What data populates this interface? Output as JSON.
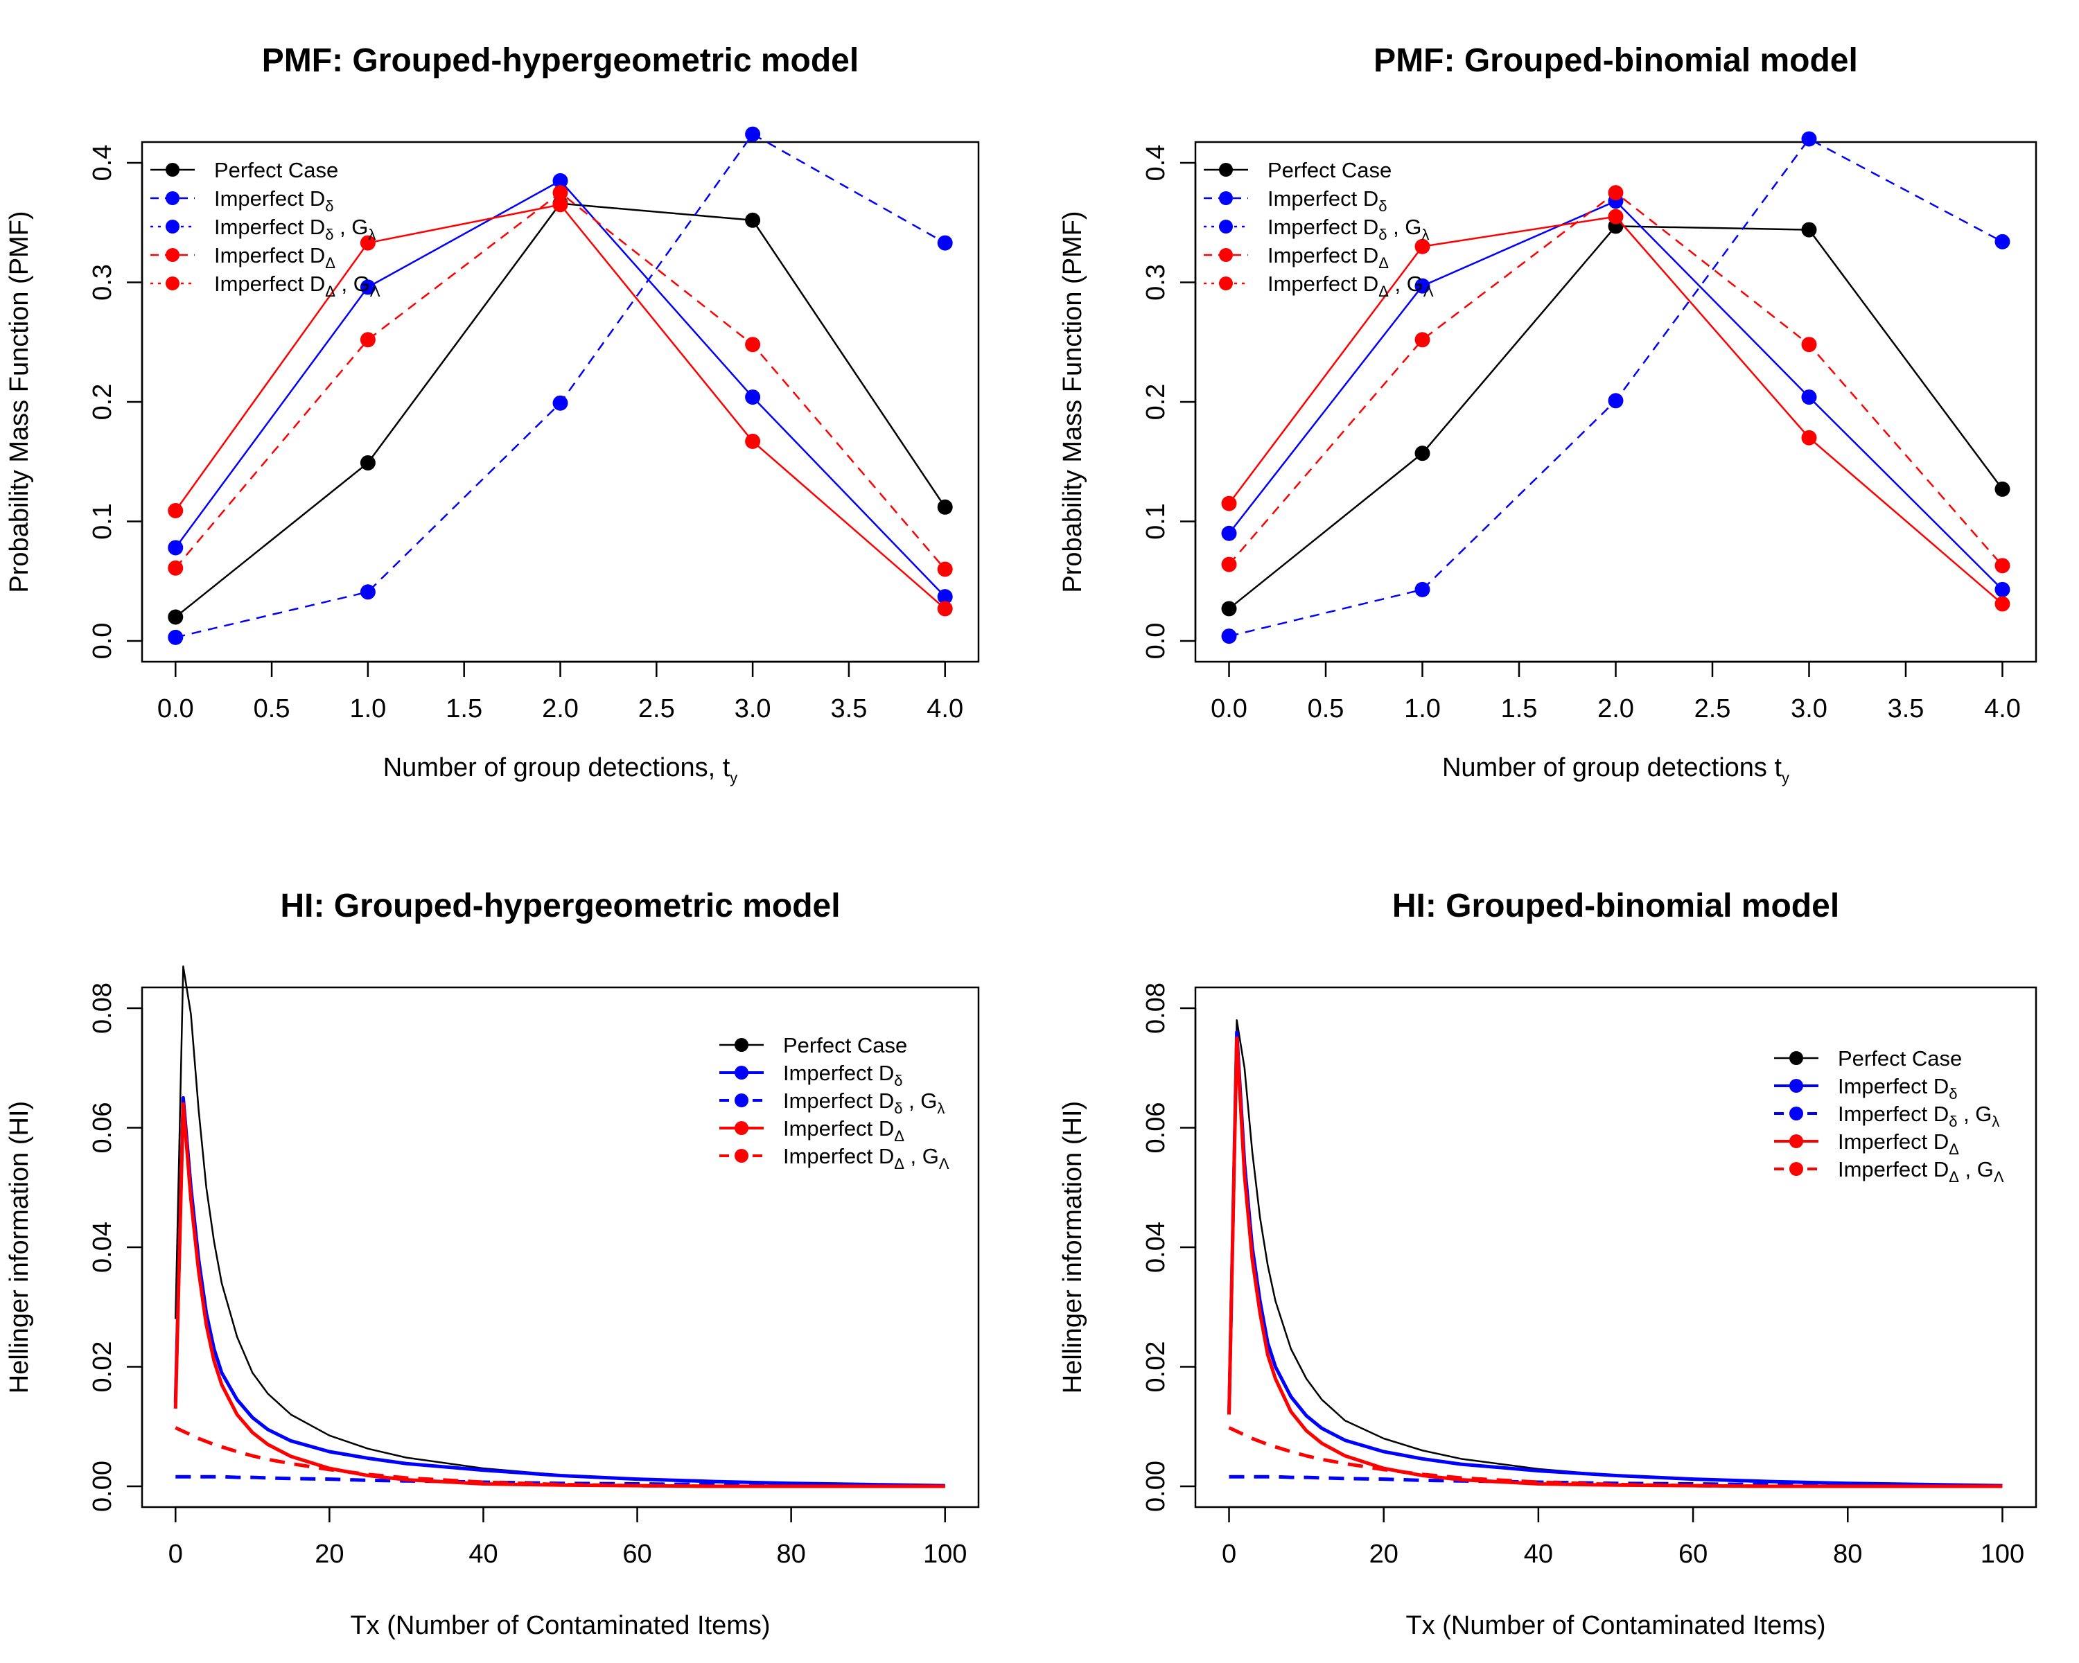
{
  "colors": {
    "perfect": "#000000",
    "delta": "#0000ff",
    "Delta": "#ff0000"
  },
  "chart_data": [
    {
      "type": "line",
      "title": "PMF: Grouped-hypergeometric model",
      "xlabel_main": "Number of group detections, t",
      "xlabel_sub": "y",
      "ylabel": "Probability Mass Function (PMF)",
      "xlim": [
        0,
        4
      ],
      "ylim": [
        0,
        0.4
      ],
      "x_ticks": [
        "0.0",
        "0.5",
        "1.0",
        "1.5",
        "2.0",
        "2.5",
        "3.0",
        "3.5",
        "4.0"
      ],
      "y_ticks": [
        "0.0",
        "0.1",
        "0.2",
        "0.3",
        "0.4"
      ],
      "grid": false,
      "legend_position": "top-left",
      "x": [
        0,
        1,
        2,
        3,
        4
      ],
      "series": [
        {
          "name_main": "Perfect Case",
          "name_sub": "",
          "name_tail": "",
          "name_sub2": "",
          "color": "#000000",
          "dash": "solid",
          "legend_dash": "solid",
          "values": [
            0.02,
            0.149,
            0.366,
            0.352,
            0.112
          ]
        },
        {
          "name_main": "Imperfect D",
          "name_sub": "δ",
          "name_tail": "",
          "name_sub2": "",
          "color": "#0000ff",
          "dash": "dashed",
          "legend_dash": "dashed",
          "values": [
            0.003,
            0.041,
            0.199,
            0.424,
            0.333
          ]
        },
        {
          "name_main": "Imperfect D",
          "name_sub": "δ",
          "name_tail": " , G",
          "name_sub2": "λ",
          "color": "#0000ff",
          "dash": "solid",
          "legend_dash": "dotted",
          "values": [
            0.078,
            0.296,
            0.385,
            0.204,
            0.037
          ]
        },
        {
          "name_main": "Imperfect D",
          "name_sub": "Δ",
          "name_tail": "",
          "name_sub2": "",
          "color": "#ff0000",
          "dash": "solid",
          "legend_dash": "dashed",
          "values": [
            0.109,
            0.333,
            0.365,
            0.167,
            0.027
          ]
        },
        {
          "name_main": "Imperfect D",
          "name_sub": "Δ",
          "name_tail": " , G",
          "name_sub2": "Λ",
          "color": "#ff0000",
          "dash": "dashed",
          "legend_dash": "dotted",
          "values": [
            0.061,
            0.252,
            0.375,
            0.248,
            0.06
          ]
        }
      ]
    },
    {
      "type": "line",
      "title": "PMF: Grouped-binomial model",
      "xlabel_main": "Number of group detections t",
      "xlabel_sub": "y",
      "ylabel": "Probability Mass Function (PMF)",
      "xlim": [
        0,
        4
      ],
      "ylim": [
        0,
        0.4
      ],
      "x_ticks": [
        "0.0",
        "0.5",
        "1.0",
        "1.5",
        "2.0",
        "2.5",
        "3.0",
        "3.5",
        "4.0"
      ],
      "y_ticks": [
        "0.0",
        "0.1",
        "0.2",
        "0.3",
        "0.4"
      ],
      "grid": false,
      "legend_position": "top-left",
      "x": [
        0,
        1,
        2,
        3,
        4
      ],
      "series": [
        {
          "name_main": "Perfect Case",
          "name_sub": "",
          "name_tail": "",
          "name_sub2": "",
          "color": "#000000",
          "dash": "solid",
          "legend_dash": "solid",
          "values": [
            0.027,
            0.157,
            0.347,
            0.344,
            0.127
          ]
        },
        {
          "name_main": "Imperfect D",
          "name_sub": "δ",
          "name_tail": "",
          "name_sub2": "",
          "color": "#0000ff",
          "dash": "dashed",
          "legend_dash": "dashed",
          "values": [
            0.004,
            0.043,
            0.201,
            0.42,
            0.334
          ]
        },
        {
          "name_main": "Imperfect D",
          "name_sub": "δ",
          "name_tail": " , G",
          "name_sub2": "λ",
          "color": "#0000ff",
          "dash": "solid",
          "legend_dash": "dotted",
          "values": [
            0.09,
            0.297,
            0.368,
            0.204,
            0.043
          ]
        },
        {
          "name_main": "Imperfect D",
          "name_sub": "Δ",
          "name_tail": "",
          "name_sub2": "",
          "color": "#ff0000",
          "dash": "solid",
          "legend_dash": "dashed",
          "values": [
            0.115,
            0.33,
            0.355,
            0.17,
            0.031
          ]
        },
        {
          "name_main": "Imperfect D",
          "name_sub": "Δ",
          "name_tail": " , G",
          "name_sub2": "Λ",
          "color": "#ff0000",
          "dash": "dashed",
          "legend_dash": "dotted",
          "values": [
            0.064,
            0.252,
            0.375,
            0.248,
            0.063
          ]
        }
      ]
    },
    {
      "type": "line",
      "title": "HI: Grouped-hypergeometric model",
      "xlabel_main": "Tx (Number of Contaminated Items)",
      "xlabel_sub": "",
      "ylabel": "Hellinger information (HI)",
      "xlim": [
        0,
        100
      ],
      "ylim": [
        0,
        0.08
      ],
      "x_ticks": [
        "0",
        "20",
        "40",
        "60",
        "80",
        "100"
      ],
      "y_ticks": [
        "0.00",
        "0.02",
        "0.04",
        "0.06",
        "0.08"
      ],
      "grid": false,
      "legend_position": "top-right",
      "x": [
        0,
        1,
        2,
        3,
        4,
        5,
        6,
        8,
        10,
        12,
        15,
        20,
        25,
        30,
        40,
        50,
        60,
        70,
        80,
        90,
        100
      ],
      "series": [
        {
          "name_main": "Perfect Case",
          "name_sub": "",
          "name_tail": "",
          "name_sub2": "",
          "color": "#000000",
          "dash": "solid",
          "width": "thin",
          "values": [
            0.028,
            0.087,
            0.079,
            0.063,
            0.05,
            0.041,
            0.034,
            0.025,
            0.019,
            0.0155,
            0.012,
            0.0085,
            0.0063,
            0.0048,
            0.003,
            0.0019,
            0.0012,
            0.0008,
            0.0005,
            0.0003,
            0.0001
          ]
        },
        {
          "name_main": "Imperfect D",
          "name_sub": "δ",
          "name_tail": "",
          "name_sub2": "",
          "color": "#0000ff",
          "dash": "solid",
          "width": "thick",
          "values": [
            0.014,
            0.065,
            0.05,
            0.038,
            0.029,
            0.023,
            0.019,
            0.0145,
            0.0115,
            0.0095,
            0.0076,
            0.0058,
            0.0047,
            0.0038,
            0.0027,
            0.0018,
            0.0012,
            0.0008,
            0.0005,
            0.0003,
            0.0001
          ]
        },
        {
          "name_main": "Imperfect D",
          "name_sub": "δ",
          "name_tail": " , G",
          "name_sub2": "λ",
          "color": "#0000ff",
          "dash": "dashed",
          "width": "thick",
          "values": [
            0.0016,
            0.0016,
            0.0016,
            0.0016,
            0.0016,
            0.0016,
            0.0016,
            0.0015,
            0.0015,
            0.0014,
            0.0013,
            0.0012,
            0.001,
            0.0009,
            0.0007,
            0.0005,
            0.0004,
            0.0003,
            0.0002,
            0.0001,
            0.0001
          ]
        },
        {
          "name_main": "Imperfect D",
          "name_sub": "Δ",
          "name_tail": "",
          "name_sub2": "",
          "color": "#ff0000",
          "dash": "solid",
          "width": "thick",
          "values": [
            0.013,
            0.064,
            0.048,
            0.036,
            0.027,
            0.021,
            0.017,
            0.012,
            0.009,
            0.007,
            0.005,
            0.003,
            0.0018,
            0.0011,
            0.0004,
            0.0002,
            0.0001,
            0.0,
            0.0,
            0.0,
            0.0
          ]
        },
        {
          "name_main": "Imperfect D",
          "name_sub": "Δ",
          "name_tail": " , G",
          "name_sub2": "Λ",
          "color": "#ff0000",
          "dash": "dashed",
          "width": "thick",
          "values": [
            0.0098,
            0.0092,
            0.0086,
            0.008,
            0.0075,
            0.007,
            0.0066,
            0.0058,
            0.0051,
            0.0045,
            0.0038,
            0.0028,
            0.002,
            0.0014,
            0.0007,
            0.0003,
            0.0001,
            0.0,
            0.0,
            0.0,
            0.0
          ]
        }
      ]
    },
    {
      "type": "line",
      "title": "HI: Grouped-binomial model",
      "xlabel_main": "Tx (Number of Contaminated Items)",
      "xlabel_sub": "",
      "ylabel": "Hellinger information (HI)",
      "xlim": [
        0,
        100
      ],
      "ylim": [
        0,
        0.08
      ],
      "x_ticks": [
        "0",
        "20",
        "40",
        "60",
        "80",
        "100"
      ],
      "y_ticks": [
        "0.00",
        "0.02",
        "0.04",
        "0.06",
        "0.08"
      ],
      "grid": false,
      "legend_position": "top-right",
      "x": [
        0,
        1,
        2,
        3,
        4,
        5,
        6,
        8,
        10,
        12,
        15,
        20,
        25,
        30,
        40,
        50,
        60,
        70,
        80,
        90,
        100
      ],
      "series": [
        {
          "name_main": "Perfect Case",
          "name_sub": "",
          "name_tail": "",
          "name_sub2": "",
          "color": "#000000",
          "dash": "solid",
          "width": "thin",
          "values": [
            0.018,
            0.078,
            0.07,
            0.056,
            0.045,
            0.037,
            0.031,
            0.023,
            0.018,
            0.0145,
            0.011,
            0.008,
            0.006,
            0.0046,
            0.0029,
            0.0018,
            0.0012,
            0.0008,
            0.0005,
            0.0003,
            0.0001
          ]
        },
        {
          "name_main": "Imperfect D",
          "name_sub": "δ",
          "name_tail": "",
          "name_sub2": "",
          "color": "#0000ff",
          "dash": "solid",
          "width": "thick",
          "values": [
            0.012,
            0.076,
            0.054,
            0.04,
            0.031,
            0.024,
            0.02,
            0.015,
            0.0118,
            0.0097,
            0.0077,
            0.0058,
            0.0046,
            0.0037,
            0.0026,
            0.0018,
            0.0012,
            0.0008,
            0.0005,
            0.0003,
            0.0001
          ]
        },
        {
          "name_main": "Imperfect D",
          "name_sub": "δ",
          "name_tail": " , G",
          "name_sub2": "λ",
          "color": "#0000ff",
          "dash": "dashed",
          "width": "thick",
          "values": [
            0.0016,
            0.0016,
            0.0016,
            0.0016,
            0.0016,
            0.0016,
            0.0016,
            0.0015,
            0.0015,
            0.0014,
            0.0013,
            0.0012,
            0.001,
            0.0009,
            0.0007,
            0.0005,
            0.0004,
            0.0003,
            0.0002,
            0.0001,
            0.0001
          ]
        },
        {
          "name_main": "Imperfect D",
          "name_sub": "Δ",
          "name_tail": "",
          "name_sub2": "",
          "color": "#ff0000",
          "dash": "solid",
          "width": "thick",
          "values": [
            0.012,
            0.075,
            0.052,
            0.038,
            0.029,
            0.022,
            0.018,
            0.0125,
            0.0093,
            0.0072,
            0.0051,
            0.003,
            0.0018,
            0.0011,
            0.0004,
            0.0002,
            0.0001,
            0.0,
            0.0,
            0.0,
            0.0
          ]
        },
        {
          "name_main": "Imperfect D",
          "name_sub": "Δ",
          "name_tail": " , G",
          "name_sub2": "Λ",
          "color": "#ff0000",
          "dash": "dashed",
          "width": "thick",
          "values": [
            0.0098,
            0.0092,
            0.0086,
            0.008,
            0.0075,
            0.007,
            0.0066,
            0.0058,
            0.0051,
            0.0045,
            0.0038,
            0.0028,
            0.002,
            0.0014,
            0.0007,
            0.0003,
            0.0001,
            0.0,
            0.0,
            0.0,
            0.0
          ]
        }
      ]
    }
  ]
}
